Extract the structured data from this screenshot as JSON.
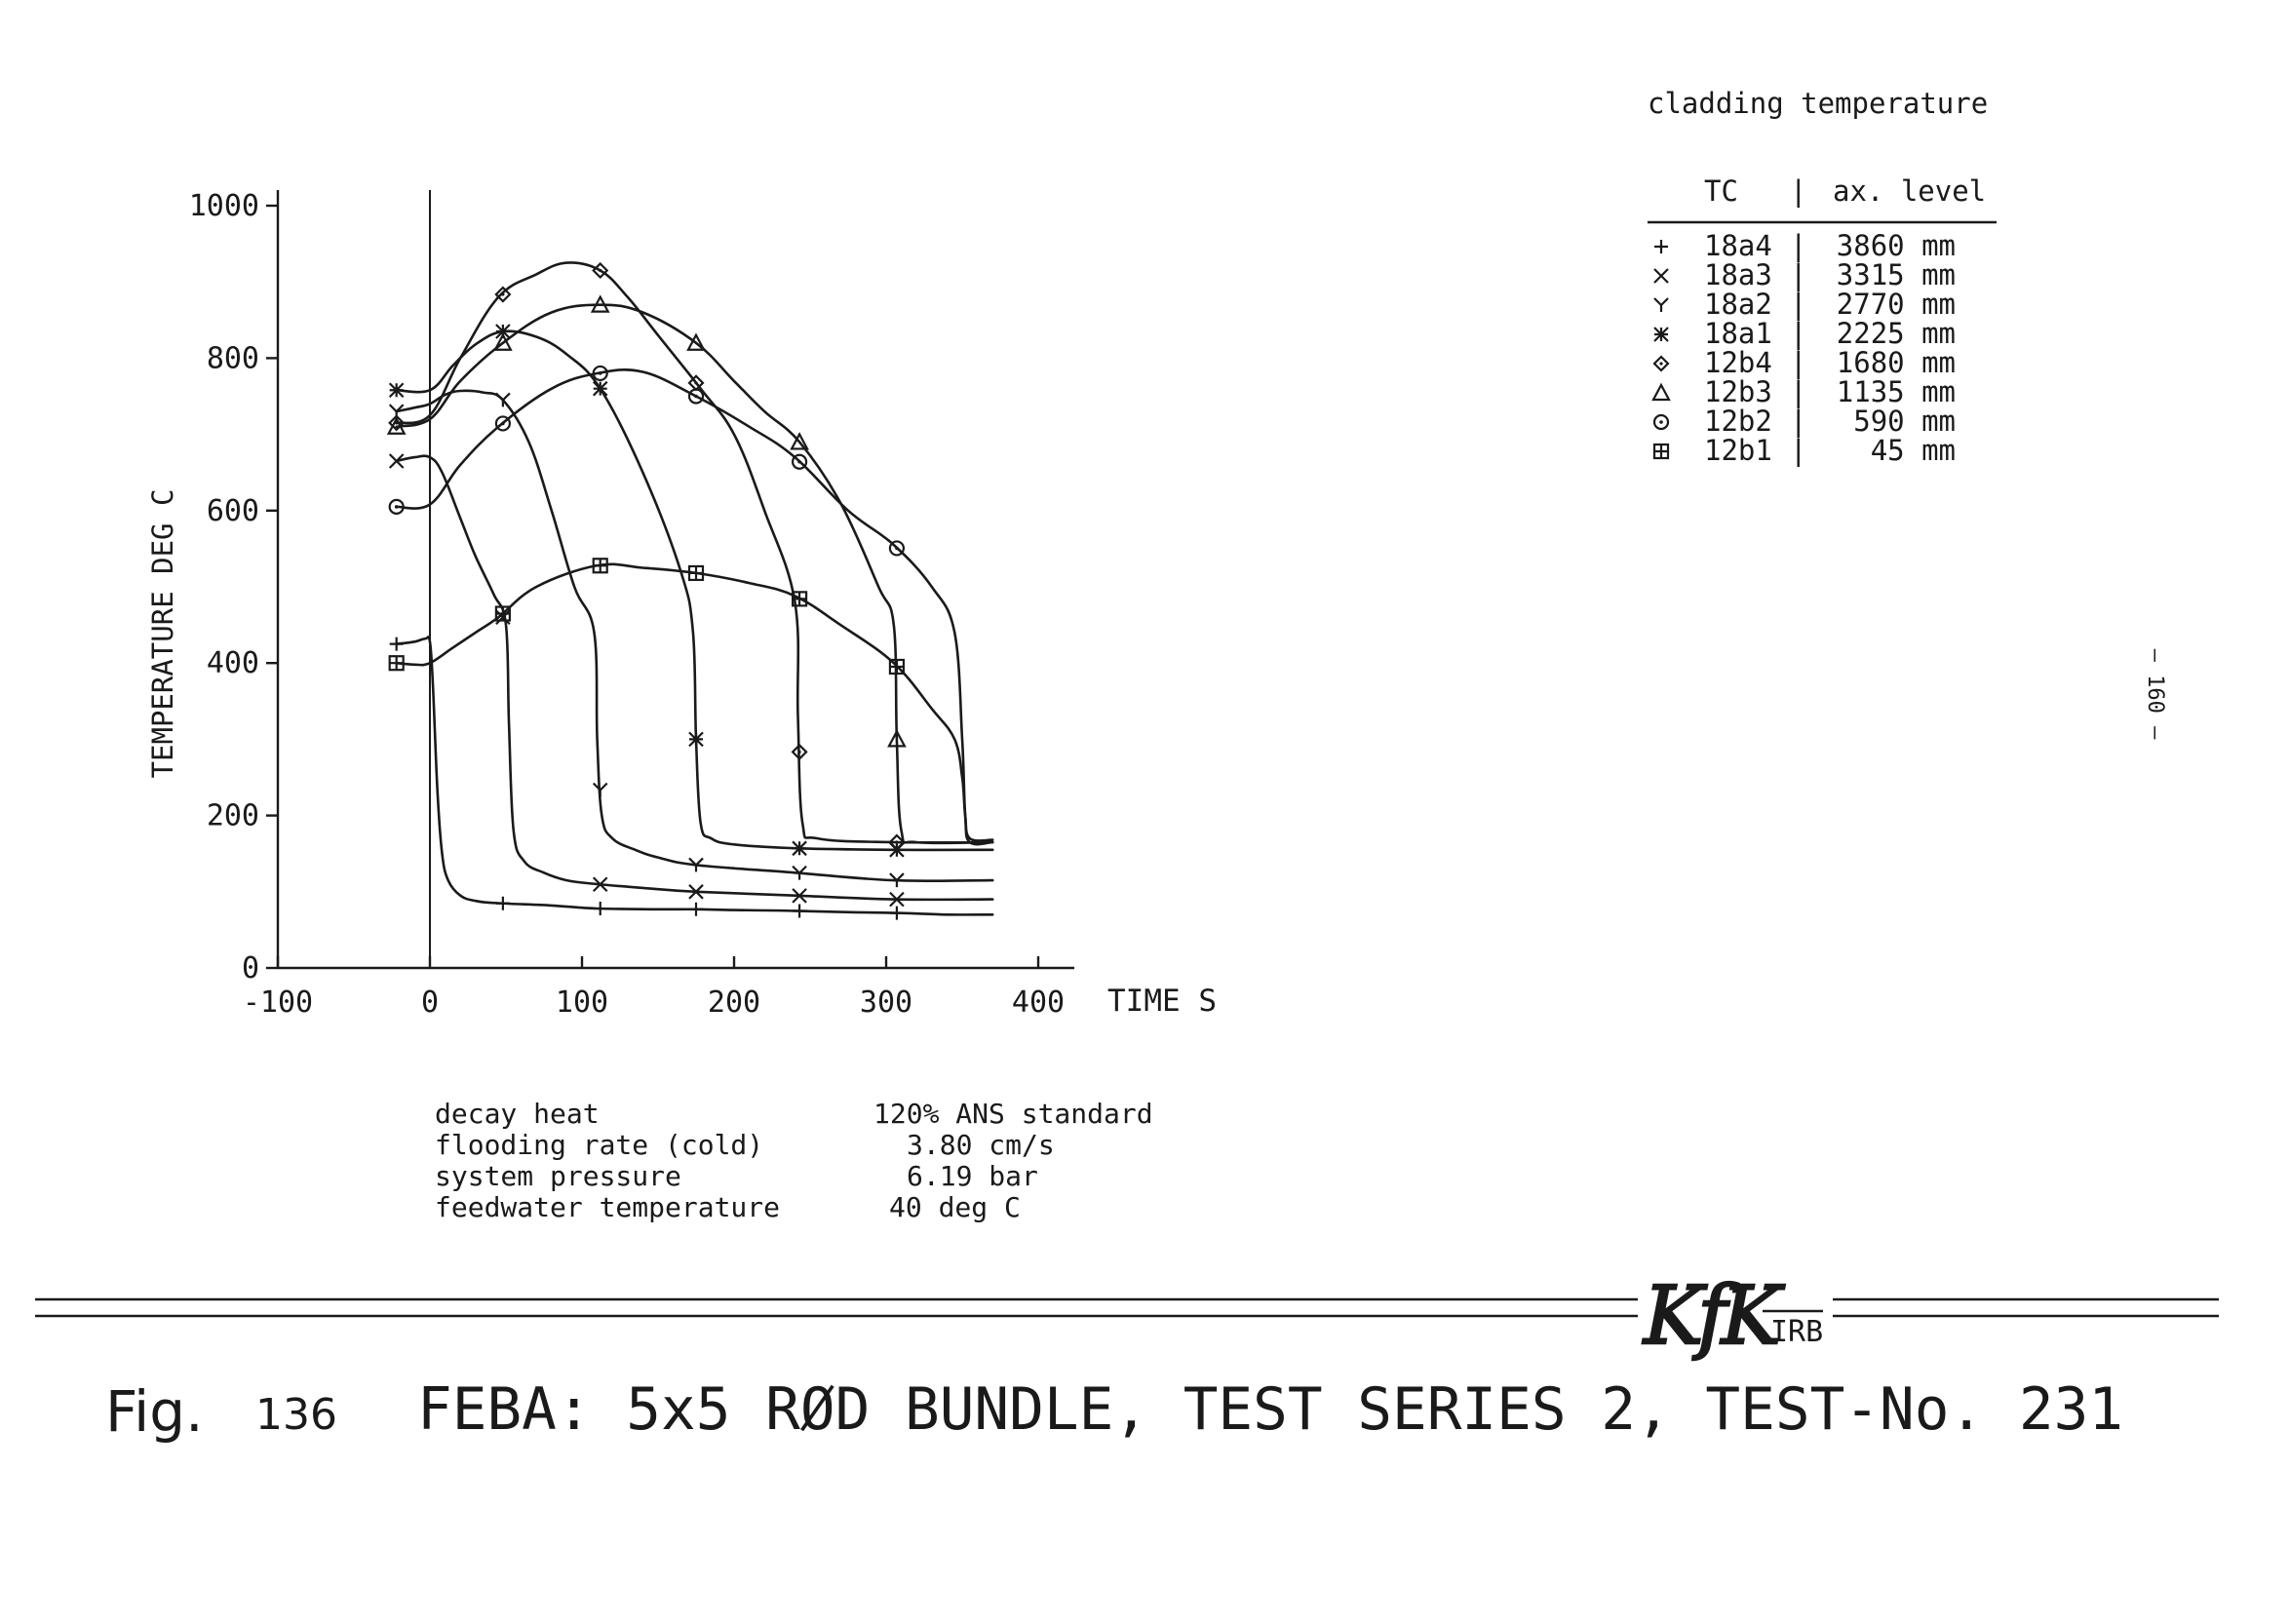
{
  "chart_data": {
    "type": "line",
    "title": "cladding temperature",
    "xlabel": "TIME S",
    "ylabel": "TEMPERATURE DEG C",
    "xlim": [
      -100,
      400
    ],
    "ylim": [
      0,
      1000
    ],
    "x_ticks": [
      "-100",
      "0",
      "100",
      "200",
      "300",
      "400"
    ],
    "y_ticks": [
      "0",
      "200",
      "400",
      "600",
      "800",
      "1000"
    ],
    "legend_placement": "top-right",
    "legend_header": {
      "tc": "TC",
      "level": "ax. level"
    },
    "series": [
      {
        "name": "18a4",
        "level": "3860 mm",
        "marker": "plus",
        "x": [
          -22,
          -10,
          -3,
          0,
          2,
          5,
          8,
          12,
          20,
          30,
          45,
          80,
          110,
          150,
          175,
          200,
          240,
          280,
          310,
          340,
          370
        ],
        "y": [
          425,
          428,
          432,
          428,
          370,
          230,
          150,
          115,
          95,
          88,
          85,
          82,
          78,
          77,
          77,
          76,
          75,
          73,
          72,
          70,
          70
        ]
      },
      {
        "name": "18a3",
        "level": "3315 mm",
        "marker": "x",
        "x": [
          -22,
          -10,
          0,
          8,
          20,
          30,
          42,
          50,
          52,
          55,
          62,
          75,
          90,
          110,
          140,
          175,
          240,
          305,
          370
        ],
        "y": [
          665,
          670,
          670,
          650,
          590,
          540,
          490,
          450,
          320,
          180,
          140,
          125,
          115,
          110,
          105,
          100,
          95,
          90,
          90
        ]
      },
      {
        "name": "18a2",
        "level": "2770 mm",
        "marker": "y",
        "x": [
          -22,
          -10,
          0,
          10,
          20,
          35,
          48,
          65,
          80,
          95,
          108,
          110,
          113,
          120,
          135,
          150,
          175,
          240,
          305,
          370
        ],
        "y": [
          730,
          735,
          740,
          752,
          757,
          755,
          745,
          690,
          600,
          500,
          440,
          300,
          200,
          170,
          155,
          145,
          135,
          125,
          115,
          115
        ]
      },
      {
        "name": "18a1",
        "level": "2225 mm",
        "marker": "star",
        "x": [
          -22,
          0,
          15,
          30,
          48,
          70,
          90,
          112,
          140,
          165,
          173,
          175,
          178,
          185,
          200,
          240,
          305,
          370
        ],
        "y": [
          758,
          758,
          790,
          818,
          835,
          828,
          805,
          760,
          650,
          520,
          440,
          300,
          190,
          170,
          162,
          157,
          155,
          155
        ]
      },
      {
        "name": "12b4",
        "level": "1680 mm",
        "marker": "diamond",
        "x": [
          -22,
          0,
          20,
          45,
          70,
          90,
          112,
          130,
          150,
          178,
          200,
          220,
          240,
          242,
          245,
          255,
          305,
          370
        ],
        "y": [
          715,
          725,
          800,
          880,
          910,
          925,
          915,
          880,
          830,
          760,
          700,
          600,
          480,
          330,
          190,
          170,
          165,
          165
        ]
      },
      {
        "name": "12b3",
        "level": "1135 mm",
        "marker": "triangle",
        "x": [
          -22,
          0,
          20,
          48,
          80,
          112,
          140,
          175,
          200,
          220,
          243,
          270,
          295,
          305,
          307,
          310,
          320,
          370
        ],
        "y": [
          710,
          720,
          770,
          820,
          860,
          870,
          860,
          820,
          770,
          730,
          690,
          610,
          500,
          450,
          300,
          180,
          165,
          165
        ]
      },
      {
        "name": "12b2",
        "level": "590 mm",
        "marker": "circle",
        "x": [
          -22,
          0,
          20,
          45,
          80,
          110,
          140,
          175,
          210,
          240,
          275,
          305,
          330,
          345,
          350,
          352,
          355,
          370
        ],
        "y": [
          605,
          608,
          660,
          710,
          760,
          780,
          782,
          750,
          710,
          670,
          600,
          555,
          500,
          440,
          300,
          200,
          165,
          165
        ]
      },
      {
        "name": "12b1",
        "level": "45 mm",
        "marker": "square",
        "x": [
          -22,
          -10,
          0,
          15,
          30,
          45,
          70,
          110,
          140,
          175,
          210,
          240,
          270,
          305,
          330,
          345,
          350,
          352,
          355,
          370
        ],
        "y": [
          400,
          398,
          400,
          420,
          440,
          460,
          500,
          528,
          525,
          518,
          505,
          488,
          450,
          400,
          340,
          300,
          250,
          200,
          170,
          168
        ]
      }
    ],
    "annotations": {
      "rows": [
        {
          "label": "decay heat",
          "value": "120% ANS standard"
        },
        {
          "label": "flooding rate (cold)",
          "value": "3.80 cm/s"
        },
        {
          "label": "system pressure",
          "value": "6.19 bar"
        },
        {
          "label": "feedwater temperature",
          "value": "40 deg C"
        }
      ]
    }
  },
  "page": {
    "page_number": "— 160 —",
    "logo_text": "KfK",
    "logo_sub": "IRB",
    "fig_label": "Fig.",
    "fig_number": "136",
    "caption": "FEBA: 5x5 RØD BUNDLE, TEST SERIES 2, TEST-No. 231"
  }
}
